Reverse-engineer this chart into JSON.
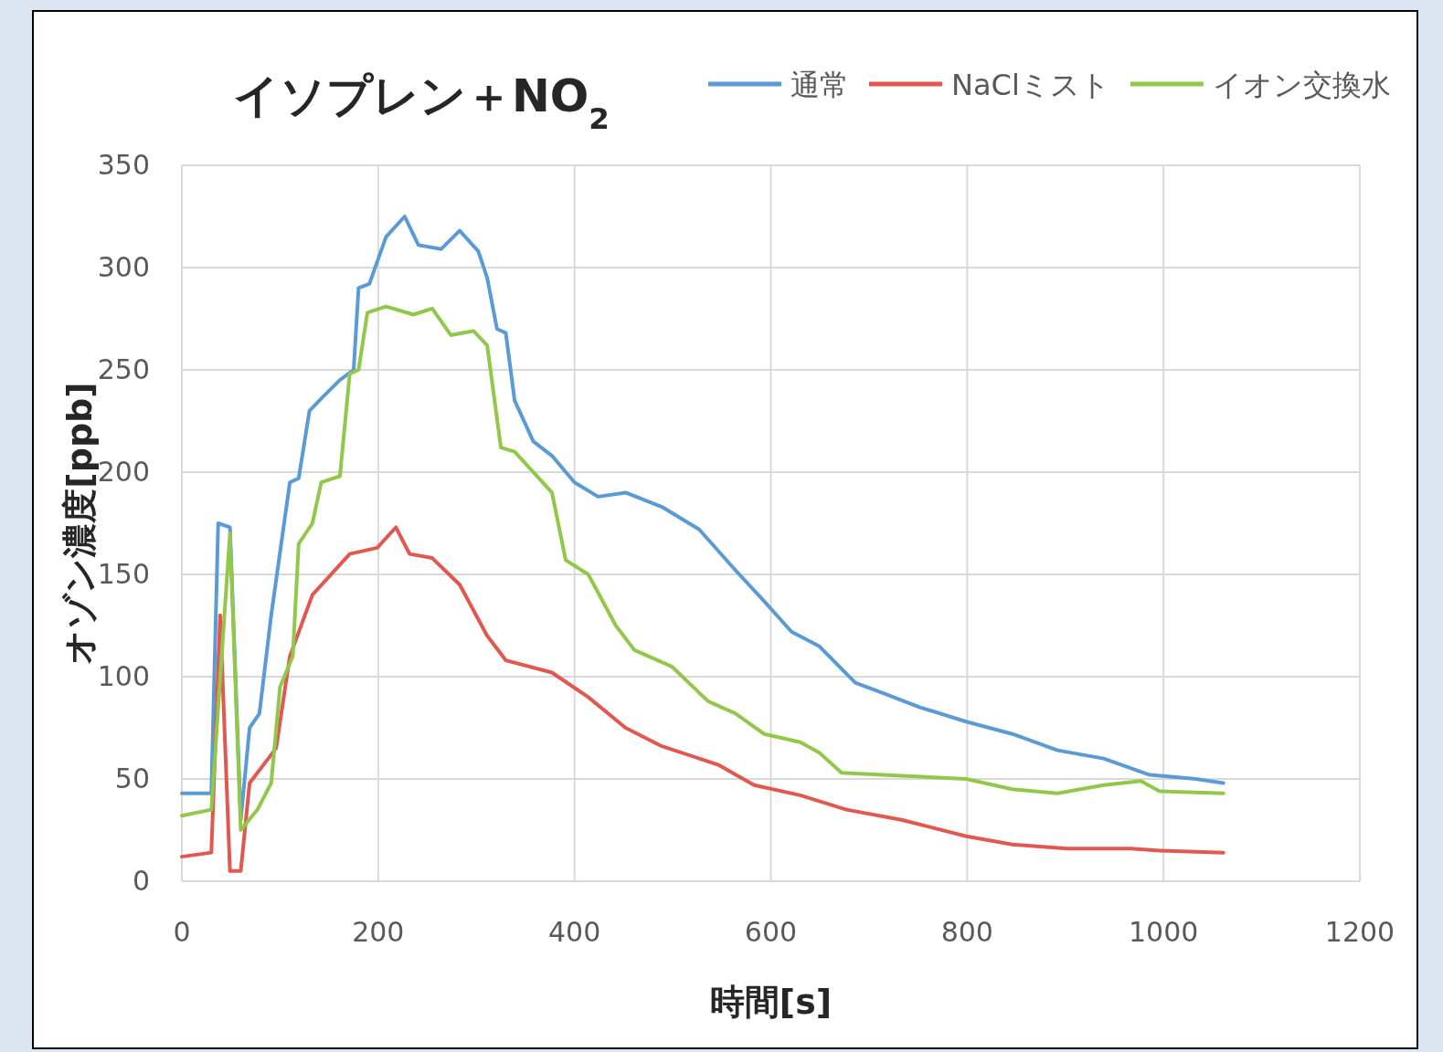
{
  "chart_data": {
    "type": "line",
    "title": "イソプレン＋NO$_{2}$",
    "xlabel": "時間[s]",
    "ylabel": "オゾン濃度[ppb]",
    "xlim": [
      0,
      1200
    ],
    "xticks": [
      0,
      200,
      400,
      600,
      800,
      1000,
      1200
    ],
    "ylim": [
      0,
      350
    ],
    "yticks": [
      0,
      50,
      100,
      150,
      200,
      250,
      300,
      350
    ],
    "grid": true,
    "legend": "top right",
    "marker": "none",
    "line_style": "solid",
    "series": [
      {
        "name": "通常",
        "color": "#5b9bd5",
        "x": [
          0,
          30,
          37,
          49,
          60,
          69,
          79,
          91,
          110,
          119,
          130,
          142,
          161,
          175,
          180,
          191,
          208,
          227,
          241,
          264,
          283,
          302,
          311,
          321,
          330,
          339,
          358,
          377,
          400,
          424,
          452,
          489,
          527,
          564,
          593,
          621,
          649,
          686,
          714,
          752,
          799,
          846,
          892,
          939,
          986,
          1033,
          1061
        ],
        "values": [
          43,
          43,
          175,
          173,
          30,
          75,
          82,
          130,
          195,
          197,
          230,
          236,
          245,
          250,
          290,
          292,
          315,
          325,
          311,
          309,
          318,
          308,
          295,
          270,
          268,
          235,
          215,
          208,
          195,
          188,
          190,
          183,
          172,
          152,
          137,
          122,
          115,
          97,
          92,
          85,
          78,
          72,
          64,
          60,
          52,
          50,
          48
        ]
      },
      {
        "name": "NaClミスト",
        "color": "#e0584f",
        "x": [
          0,
          30,
          39,
          49,
          60,
          69,
          96,
          110,
          133,
          171,
          199,
          218,
          232,
          255,
          283,
          302,
          311,
          330,
          377,
          414,
          452,
          489,
          546,
          583,
          630,
          677,
          733,
          799,
          846,
          902,
          967,
          996,
          1061
        ],
        "values": [
          12,
          14,
          130,
          5,
          5,
          48,
          65,
          110,
          140,
          160,
          163,
          173,
          160,
          158,
          145,
          128,
          120,
          108,
          102,
          90,
          75,
          66,
          57,
          47,
          42,
          35,
          30,
          22,
          18,
          16,
          16,
          15,
          14
        ]
      },
      {
        "name": "イオン交換水",
        "color": "#92c84a",
        "x": [
          0,
          30,
          49,
          60,
          77,
          91,
          100,
          113,
          119,
          133,
          142,
          161,
          171,
          180,
          189,
          208,
          236,
          255,
          274,
          297,
          311,
          325,
          339,
          377,
          391,
          414,
          442,
          461,
          499,
          536,
          564,
          593,
          630,
          649,
          672,
          714,
          799,
          846,
          892,
          939,
          977,
          996,
          1061
        ],
        "values": [
          32,
          35,
          170,
          25,
          35,
          48,
          95,
          110,
          165,
          175,
          195,
          198,
          248,
          250,
          278,
          281,
          277,
          280,
          267,
          269,
          262,
          212,
          210,
          190,
          157,
          150,
          125,
          113,
          105,
          88,
          82,
          72,
          68,
          63,
          53,
          52,
          50,
          45,
          43,
          47,
          49,
          44,
          43
        ]
      }
    ]
  }
}
